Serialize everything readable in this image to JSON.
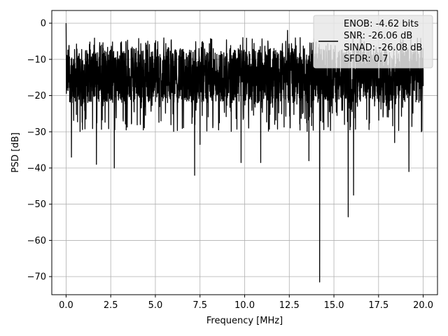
{
  "chart_data": {
    "type": "line",
    "xlabel": "Frequency [MHz]",
    "ylabel": "PSD [dB]",
    "xlim": [
      -0.8,
      20.8
    ],
    "ylim": [
      -75,
      3.5
    ],
    "xticks": [
      0.0,
      2.5,
      5.0,
      7.5,
      10.0,
      12.5,
      15.0,
      17.5,
      20.0
    ],
    "xtick_labels": [
      "0.0",
      "2.5",
      "5.0",
      "7.5",
      "10.0",
      "12.5",
      "15.0",
      "17.5",
      "20.0"
    ],
    "yticks": [
      0,
      -10,
      -20,
      -30,
      -40,
      -50,
      -60,
      -70
    ],
    "ytick_labels": [
      "0",
      "−10",
      "−20",
      "−30",
      "−40",
      "−50",
      "−60",
      "−70"
    ],
    "grid": true,
    "legend_position": "upper-right",
    "series_color": "#000000",
    "series": [
      {
        "x_range": [
          0,
          20
        ],
        "noise_band_db": [
          -22,
          -7
        ],
        "peaks": [
          {
            "x": 0.0,
            "y": 0.0
          },
          {
            "x": 4.5,
            "y": -6
          },
          {
            "x": 9.9,
            "y": -4
          },
          {
            "x": 12.3,
            "y": -5
          },
          {
            "x": 12.4,
            "y": -2
          }
        ],
        "dips": [
          {
            "x": 0.3,
            "y": -37
          },
          {
            "x": 1.7,
            "y": -39
          },
          {
            "x": 2.7,
            "y": -40
          },
          {
            "x": 7.2,
            "y": -42
          },
          {
            "x": 7.5,
            "y": -33.5
          },
          {
            "x": 9.8,
            "y": -38.5
          },
          {
            "x": 10.9,
            "y": -38.5
          },
          {
            "x": 13.6,
            "y": -38
          },
          {
            "x": 14.2,
            "y": -71.5
          },
          {
            "x": 15.8,
            "y": -53.5
          },
          {
            "x": 16.1,
            "y": -47.5
          },
          {
            "x": 18.4,
            "y": -33
          },
          {
            "x": 19.2,
            "y": -41
          },
          {
            "x": 19.9,
            "y": -30
          }
        ]
      }
    ],
    "legend_lines": [
      "ENOB: -4.62 bits",
      "SNR: -26.06 dB",
      "SINAD: -26.08 dB",
      "SFDR: 0.7"
    ]
  }
}
